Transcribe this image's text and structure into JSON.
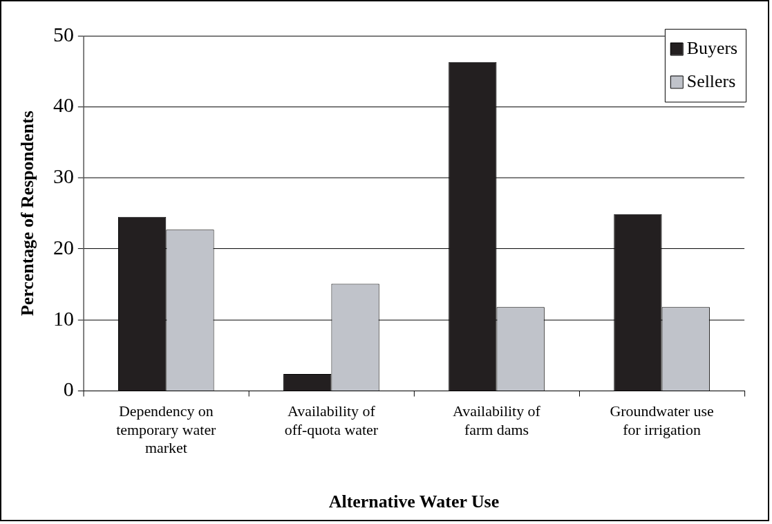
{
  "chart_data": {
    "type": "bar",
    "xlabel": "Alternative Water Use",
    "ylabel": "Percentage of Respondents",
    "categories": [
      "Dependency on temporary water market",
      "Availability of off-quota water",
      "Availability of farm dams",
      "Groundwater use for irrigation"
    ],
    "series": [
      {
        "name": "Buyers",
        "color": "#231f20",
        "values": [
          24.5,
          2.4,
          46.3,
          24.9
        ]
      },
      {
        "name": "Sellers",
        "color": "#c0c3ca",
        "values": [
          22.7,
          15.1,
          11.8,
          11.8
        ]
      }
    ],
    "ylim": [
      0,
      50
    ],
    "yticks": [
      0,
      10,
      20,
      30,
      40,
      50
    ],
    "grid": "y",
    "legend": "top right"
  }
}
